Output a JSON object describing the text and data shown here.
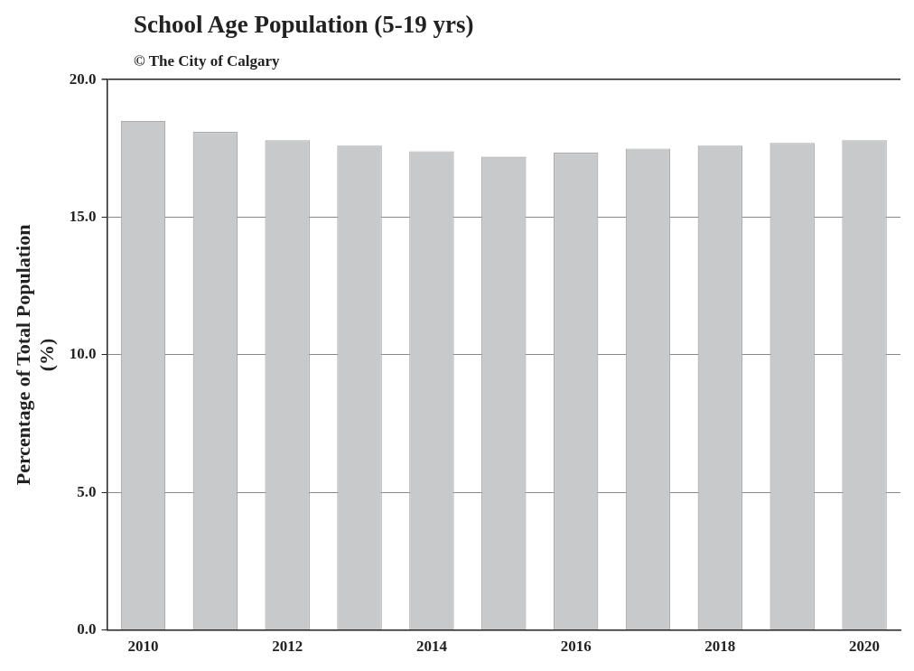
{
  "chart_data": {
    "type": "bar",
    "title": "School Age Population (5-19 yrs)",
    "subtitle": "© The City of Calgary",
    "ylabel": "Percentage of Total Population (%)",
    "categories": [
      "2010",
      null,
      "2012",
      null,
      "2014",
      null,
      "2016",
      null,
      "2018",
      null,
      "2020"
    ],
    "values": [
      18.5,
      18.1,
      17.8,
      17.6,
      17.4,
      17.2,
      17.35,
      17.5,
      17.6,
      17.7,
      17.8
    ],
    "color": "#c8c9cb",
    "ylim": [
      0,
      20
    ],
    "yticks": [
      {
        "value": 0,
        "label": "0.0"
      },
      {
        "value": 5,
        "label": "5.0"
      },
      {
        "value": 10,
        "label": "10.0"
      },
      {
        "value": 15,
        "label": "15.0"
      },
      {
        "value": 20,
        "label": "20.0"
      }
    ],
    "grid": "y",
    "legend": false
  }
}
